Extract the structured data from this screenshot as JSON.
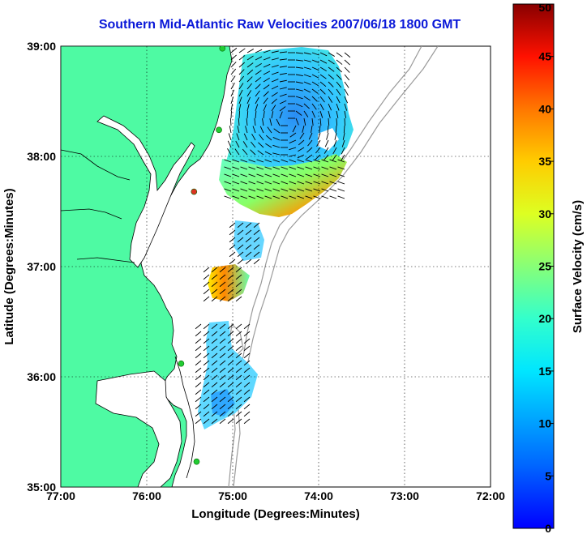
{
  "title": "Southern Mid-Atlantic Raw Velocities 2007/06/18 1800 GMT",
  "axes": {
    "xlabel": "Longitude (Degrees:Minutes)",
    "ylabel": "Latitude (Degrees:Minutes)",
    "x_ticks": [
      "77:00",
      "76:00",
      "75:00",
      "74:00",
      "73:00",
      "72:00"
    ],
    "y_ticks": [
      "39:00",
      "38:00",
      "37:00",
      "36:00",
      "35:00"
    ]
  },
  "colorbar": {
    "label": "Surface Velocity (cm/s)",
    "ticks": [
      "50",
      "45",
      "40",
      "35",
      "30",
      "25",
      "20",
      "15",
      "10",
      "5",
      "0"
    ],
    "range": [
      0,
      50
    ]
  },
  "colors": {
    "land": "#4efaa3",
    "title": "#0a18d8",
    "bathymetry": "#9a9a9a",
    "station": "#22cc33",
    "station_alt": "#dd3322"
  },
  "chart_data": {
    "type": "map",
    "xlim": [
      -77,
      -72
    ],
    "ylim": [
      35,
      39
    ],
    "grid": true,
    "stations": [
      {
        "lon": -75.12,
        "lat": 38.98,
        "status": "active"
      },
      {
        "lon": -75.16,
        "lat": 38.24,
        "status": "active"
      },
      {
        "lon": -75.45,
        "lat": 37.68,
        "status": "alternate"
      },
      {
        "lon": -75.6,
        "lat": 36.12,
        "status": "active"
      },
      {
        "lon": -75.42,
        "lat": 35.23,
        "status": "active"
      }
    ]
  }
}
